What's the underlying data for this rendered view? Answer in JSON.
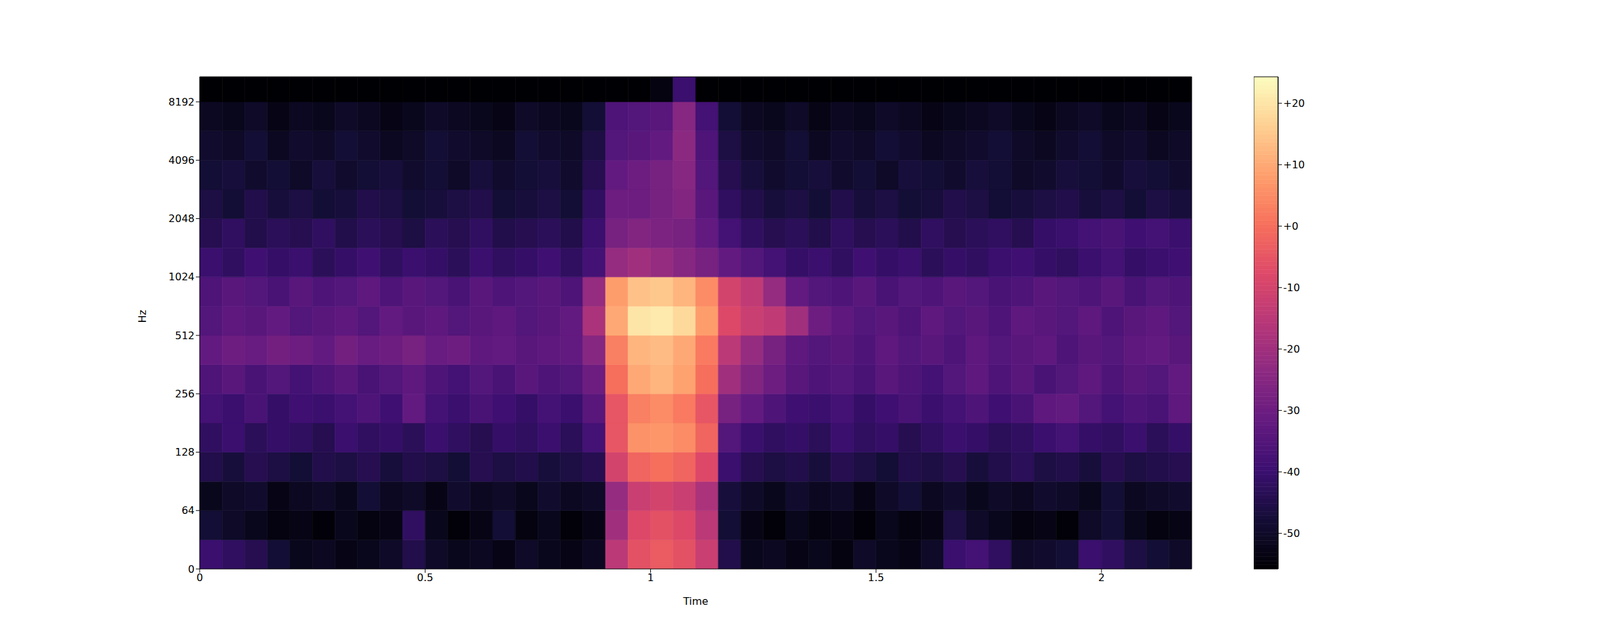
{
  "chart_data": {
    "type": "heatmap",
    "x_label": "Time",
    "y_label": "Hz",
    "log": "y",
    "xlim": [
      0,
      2.2
    ],
    "xticks": [
      0,
      0.5,
      1,
      1.5,
      2
    ],
    "ylim": [
      0,
      11025
    ],
    "yticks": [
      0,
      64,
      128,
      256,
      512,
      1024,
      2048,
      4096,
      8192
    ],
    "x": [
      0,
      0.05,
      0.1,
      0.15,
      0.2,
      0.25,
      0.3,
      0.35,
      0.4,
      0.45,
      0.5,
      0.55,
      0.6,
      0.65,
      0.7,
      0.75,
      0.8,
      0.85,
      0.9,
      0.95,
      1,
      1.05,
      1.1,
      1.15,
      1.2,
      1.25,
      1.3,
      1.35,
      1.4,
      1.45,
      1.5,
      1.55,
      1.6,
      1.65,
      1.7,
      1.75,
      1.8,
      1.85,
      1.9,
      1.95,
      2,
      2.05,
      2.1,
      2.15,
      2.2
    ],
    "y": [
      0,
      32,
      64,
      90.5,
      128,
      181,
      256,
      362,
      512,
      724,
      1024,
      1448,
      2048,
      2896,
      4096,
      5793,
      8192,
      11025
    ],
    "values": [
      [
        -40,
        -42,
        -44,
        -48,
        -52,
        -51,
        -53,
        -52,
        -50,
        -45,
        -50,
        -52,
        -51,
        -53,
        -50,
        -52,
        -53,
        -51,
        -15,
        -6,
        -4,
        -6,
        -12,
        -45,
        -52,
        -51,
        -53,
        -52,
        -54,
        -50,
        -52,
        -53,
        -50,
        -40,
        -38,
        -42,
        -50,
        -49,
        -48,
        -40,
        -42,
        -46,
        -48,
        -50
      ],
      [
        -48,
        -50,
        -52,
        -54,
        -53,
        -55,
        -52,
        -54,
        -53,
        -42,
        -52,
        -55,
        -53,
        -48,
        -54,
        -52,
        -55,
        -53,
        -20,
        -8,
        -6,
        -8,
        -15,
        -48,
        -53,
        -55,
        -52,
        -54,
        -53,
        -55,
        -52,
        -54,
        -53,
        -46,
        -50,
        -52,
        -54,
        -53,
        -55,
        -50,
        -48,
        -52,
        -54,
        -53
      ],
      [
        -52,
        -50,
        -49,
        -53,
        -51,
        -50,
        -52,
        -48,
        -51,
        -50,
        -53,
        -49,
        -51,
        -50,
        -52,
        -49,
        -51,
        -50,
        -22,
        -12,
        -10,
        -12,
        -18,
        -47,
        -50,
        -52,
        -49,
        -51,
        -50,
        -53,
        -50,
        -48,
        -51,
        -49,
        -52,
        -50,
        -51,
        -49,
        -50,
        -52,
        -48,
        -51,
        -50,
        -49
      ],
      [
        -45,
        -47,
        -44,
        -46,
        -48,
        -45,
        -46,
        -44,
        -47,
        -45,
        -46,
        -48,
        -44,
        -46,
        -45,
        -47,
        -46,
        -44,
        -10,
        -2,
        0,
        -2,
        -8,
        -40,
        -44,
        -46,
        -45,
        -47,
        -44,
        -46,
        -48,
        -45,
        -46,
        -44,
        -47,
        -45,
        -43,
        -46,
        -45,
        -47,
        -44,
        -46,
        -45,
        -44
      ],
      [
        -42,
        -40,
        -43,
        -41,
        -42,
        -44,
        -40,
        -42,
        -41,
        -43,
        -40,
        -42,
        -44,
        -41,
        -42,
        -40,
        -43,
        -38,
        -5,
        6,
        7,
        5,
        -2,
        -35,
        -40,
        -42,
        -41,
        -43,
        -40,
        -42,
        -41,
        -44,
        -42,
        -40,
        -41,
        -43,
        -42,
        -40,
        -38,
        -41,
        -42,
        -40,
        -43,
        -41
      ],
      [
        -38,
        -40,
        -37,
        -41,
        -39,
        -40,
        -38,
        -36,
        -39,
        -32,
        -38,
        -40,
        -37,
        -39,
        -41,
        -38,
        -40,
        -34,
        -5,
        3,
        5,
        2,
        -5,
        -28,
        -32,
        -36,
        -39,
        -40,
        -38,
        -41,
        -39,
        -37,
        -40,
        -38,
        -36,
        -39,
        -37,
        -33,
        -32,
        -35,
        -38,
        -36,
        -37,
        -33
      ],
      [
        -36,
        -34,
        -37,
        -35,
        -38,
        -36,
        -34,
        -37,
        -35,
        -33,
        -36,
        -38,
        -35,
        -37,
        -34,
        -36,
        -35,
        -30,
        0,
        10,
        12,
        9,
        0,
        -20,
        -26,
        -30,
        -34,
        -36,
        -35,
        -37,
        -34,
        -36,
        -38,
        -35,
        -33,
        -36,
        -34,
        -37,
        -35,
        -33,
        -36,
        -34,
        -35,
        -32
      ],
      [
        -32,
        -30,
        -31,
        -29,
        -30,
        -32,
        -29,
        -31,
        -30,
        -28,
        -31,
        -30,
        -33,
        -32,
        -34,
        -33,
        -32,
        -25,
        3,
        12,
        13,
        10,
        2,
        -15,
        -22,
        -28,
        -33,
        -35,
        -34,
        -36,
        -33,
        -35,
        -34,
        -36,
        -33,
        -35,
        -34,
        -33,
        -36,
        -34,
        -35,
        -33,
        -32,
        -34
      ],
      [
        -35,
        -33,
        -34,
        -32,
        -35,
        -34,
        -33,
        -35,
        -32,
        -34,
        -33,
        -35,
        -34,
        -33,
        -35,
        -34,
        -32,
        -18,
        10,
        20,
        21,
        18,
        8,
        -8,
        -12,
        -14,
        -20,
        -30,
        -33,
        -35,
        -34,
        -36,
        -33,
        -35,
        -34,
        -36,
        -33,
        -34,
        -35,
        -33,
        -36,
        -34,
        -33,
        -35
      ],
      [
        -36,
        -34,
        -35,
        -37,
        -34,
        -36,
        -35,
        -33,
        -36,
        -34,
        -35,
        -37,
        -34,
        -36,
        -35,
        -34,
        -36,
        -22,
        8,
        14,
        15,
        12,
        5,
        -10,
        -14,
        -22,
        -32,
        -35,
        -36,
        -34,
        -37,
        -35,
        -36,
        -34,
        -35,
        -37,
        -36,
        -34,
        -35,
        -36,
        -34,
        -37,
        -35,
        -36
      ],
      [
        -40,
        -42,
        -39,
        -41,
        -40,
        -43,
        -41,
        -39,
        -42,
        -40,
        -41,
        -43,
        -40,
        -42,
        -41,
        -39,
        -42,
        -38,
        -22,
        -20,
        -22,
        -25,
        -28,
        -32,
        -35,
        -38,
        -41,
        -40,
        -42,
        -39,
        -41,
        -40,
        -43,
        -41,
        -42,
        -40,
        -39,
        -41,
        -42,
        -40,
        -38,
        -41,
        -40,
        -39
      ],
      [
        -44,
        -42,
        -45,
        -43,
        -44,
        -42,
        -45,
        -43,
        -44,
        -46,
        -43,
        -44,
        -42,
        -45,
        -44,
        -43,
        -45,
        -40,
        -28,
        -26,
        -27,
        -28,
        -32,
        -38,
        -42,
        -44,
        -43,
        -45,
        -42,
        -44,
        -43,
        -45,
        -42,
        -44,
        -43,
        -42,
        -44,
        -41,
        -40,
        -38,
        -37,
        -39,
        -38,
        -40
      ],
      [
        -46,
        -48,
        -45,
        -47,
        -46,
        -48,
        -47,
        -45,
        -46,
        -48,
        -47,
        -46,
        -45,
        -48,
        -47,
        -46,
        -48,
        -42,
        -30,
        -30,
        -28,
        -26,
        -34,
        -42,
        -45,
        -47,
        -46,
        -48,
        -45,
        -47,
        -46,
        -48,
        -47,
        -45,
        -46,
        -48,
        -47,
        -46,
        -45,
        -47,
        -46,
        -48,
        -46,
        -47
      ],
      [
        -48,
        -47,
        -49,
        -48,
        -50,
        -47,
        -49,
        -48,
        -47,
        -49,
        -48,
        -50,
        -47,
        -49,
        -48,
        -47,
        -49,
        -44,
        -32,
        -30,
        -28,
        -25,
        -35,
        -44,
        -47,
        -49,
        -48,
        -47,
        -49,
        -48,
        -50,
        -47,
        -48,
        -49,
        -47,
        -48,
        -50,
        -49,
        -47,
        -48,
        -49,
        -47,
        -48,
        -49
      ],
      [
        -49,
        -50,
        -48,
        -51,
        -49,
        -50,
        -48,
        -49,
        -51,
        -50,
        -48,
        -49,
        -50,
        -51,
        -48,
        -49,
        -50,
        -46,
        -35,
        -34,
        -32,
        -24,
        -36,
        -46,
        -49,
        -50,
        -48,
        -51,
        -49,
        -50,
        -48,
        -49,
        -51,
        -50,
        -49,
        -48,
        -50,
        -51,
        -49,
        -48,
        -50,
        -49,
        -51,
        -50
      ],
      [
        -51,
        -52,
        -50,
        -53,
        -51,
        -52,
        -50,
        -51,
        -53,
        -52,
        -50,
        -51,
        -52,
        -53,
        -50,
        -51,
        -52,
        -48,
        -36,
        -35,
        -34,
        -25,
        -38,
        -48,
        -51,
        -52,
        -50,
        -53,
        -51,
        -52,
        -50,
        -51,
        -53,
        -52,
        -51,
        -50,
        -52,
        -53,
        -51,
        -50,
        -52,
        -51,
        -53,
        -52
      ],
      [
        -56,
        -56,
        -56,
        -56,
        -56,
        -56,
        -56,
        -56,
        -56,
        -56,
        -56,
        -56,
        -56,
        -56,
        -56,
        -56,
        -56,
        -56,
        -56,
        -56,
        -54,
        -40,
        -56,
        -56,
        -56,
        -56,
        -56,
        -56,
        -56,
        -56,
        -56,
        -56,
        -56,
        -56,
        -56,
        -56,
        -56,
        -56,
        -56,
        -56,
        -56,
        -56,
        -56,
        -56
      ]
    ],
    "colorbar": {
      "range": [
        -55.8,
        24.3
      ],
      "ticks": [
        {
          "value": 20,
          "label": "+20"
        },
        {
          "value": 10,
          "label": "+10"
        },
        {
          "value": 0,
          "label": "+0"
        },
        -10,
        -20,
        -30,
        -40,
        -50
      ]
    }
  }
}
